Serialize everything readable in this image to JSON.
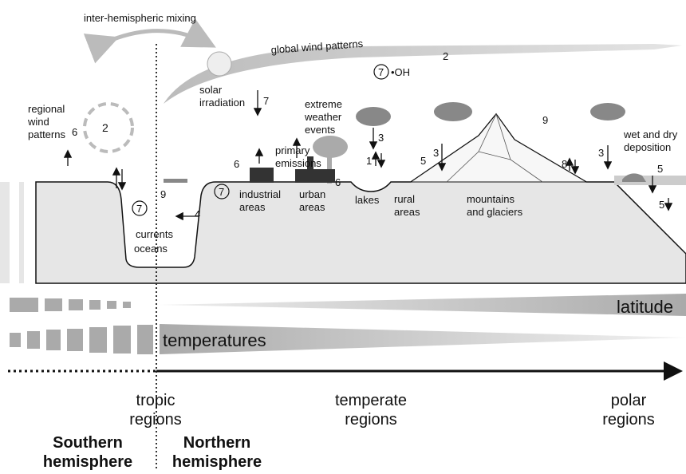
{
  "labels": {
    "inter_hemispheric_mixing": "inter-hemispheric mixing",
    "global_wind_patterns": "global wind patterns",
    "oh": "•OH",
    "solar_irradiation": [
      "solar",
      "irradiation"
    ],
    "regional_wind_patterns": [
      "regional",
      "wind",
      "patterns"
    ],
    "extreme_weather_events": [
      "extreme",
      "weather",
      "events"
    ],
    "wet_and_dry_deposition": [
      "wet and dry",
      "deposition"
    ],
    "primary_emissions": [
      "primary",
      "emissions"
    ],
    "industrial_areas": [
      "industrial",
      "areas"
    ],
    "urban_areas": [
      "urban",
      "areas"
    ],
    "lakes": "lakes",
    "rural_areas": [
      "rural",
      "areas"
    ],
    "mountains_and_glaciers": [
      "mountains",
      "and glaciers"
    ],
    "currents": "currents",
    "oceans": "oceans",
    "latitude": "latitude",
    "temperatures": "temperatures"
  },
  "process_numbers": [
    "2",
    "7",
    "7",
    "2",
    "9",
    "3",
    "3",
    "6",
    "6",
    "1",
    "5",
    "8",
    "5",
    "5",
    "6",
    "9",
    "7",
    "4",
    "7",
    "3"
  ],
  "regions": {
    "tropic": [
      "tropic",
      "regions"
    ],
    "temperate": [
      "temperate",
      "regions"
    ],
    "polar": [
      "polar",
      "regions"
    ]
  },
  "hemispheres": {
    "southern": [
      "Southern",
      "hemisphere"
    ],
    "northern": [
      "Northern",
      "hemisphere"
    ]
  }
}
